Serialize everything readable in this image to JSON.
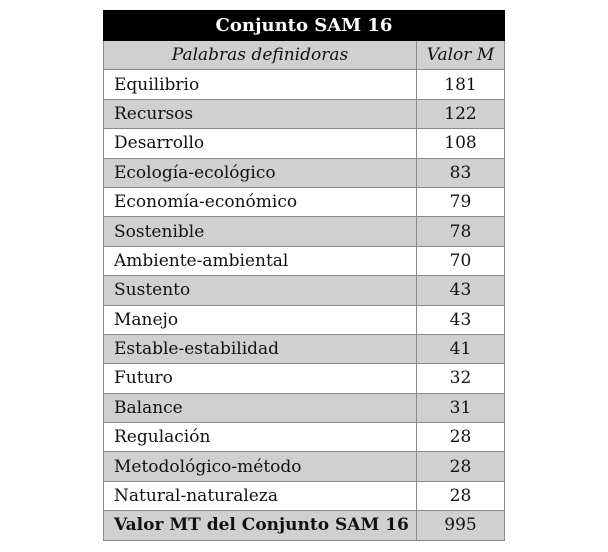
{
  "table": {
    "title": "Conjunto SAM 16",
    "headers": [
      "Palabras definidoras",
      "Valor M"
    ],
    "rows": [
      {
        "word": "Equilibrio",
        "value": "181"
      },
      {
        "word": "Recursos",
        "value": "122"
      },
      {
        "word": "Desarrollo",
        "value": "108"
      },
      {
        "word": "Ecología-ecológico",
        "value": "83"
      },
      {
        "word": "Economía-económico",
        "value": "79"
      },
      {
        "word": "Sostenible",
        "value": "78"
      },
      {
        "word": "Ambiente-ambiental",
        "value": "70"
      },
      {
        "word": "Sustento",
        "value": "43"
      },
      {
        "word": "Manejo",
        "value": "43"
      },
      {
        "word": "Estable-estabilidad",
        "value": "41"
      },
      {
        "word": "Futuro",
        "value": "32"
      },
      {
        "word": "Balance",
        "value": "31"
      },
      {
        "word": "Regulación",
        "value": "28"
      },
      {
        "word": "Metodológico-método",
        "value": "28"
      },
      {
        "word": "Natural-naturaleza",
        "value": "28"
      }
    ],
    "total": {
      "label": "Valor MT del Conjunto SAM 16",
      "value": "995"
    },
    "colors": {
      "title_bg": "#000000",
      "stripe": "#d0d0d0"
    }
  }
}
